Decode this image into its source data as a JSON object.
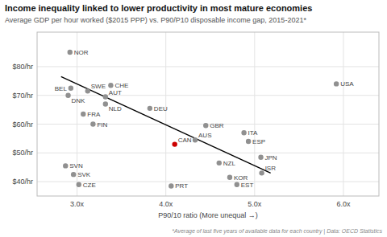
{
  "chart_data": {
    "type": "scatter",
    "title": "Income inequality linked to lower productivity in most mature economies",
    "subtitle": "Average GDP per hour worked ($2015 PPP) vs. P90/P10 disposable income gap, 2015-2021*",
    "footnote": "*Average of last five years of available data for each country | Data: OECD Statistics",
    "xlabel": "P90/10 ratio (More unequal →)",
    "xlim": [
      2.55,
      6.4
    ],
    "ylim": [
      35,
      92
    ],
    "xticks": [
      {
        "value": 3.0,
        "label": "3.0x"
      },
      {
        "value": 4.0,
        "label": "4.0x"
      },
      {
        "value": 5.0,
        "label": "5.0x"
      },
      {
        "value": 6.0,
        "label": "6.0x"
      }
    ],
    "yticks": [
      {
        "value": 40,
        "label": "$40/hr"
      },
      {
        "value": 50,
        "label": "$50/hr"
      },
      {
        "value": 60,
        "label": "$60/hr"
      },
      {
        "value": 70,
        "label": "$70/hr"
      },
      {
        "value": 80,
        "label": "$80/hr"
      }
    ],
    "grid": true,
    "series": [
      {
        "type": "scatter",
        "x": [
          2.92,
          2.93,
          3.12,
          3.38,
          2.9,
          3.32,
          3.32,
          3.07,
          3.18,
          3.82,
          4.45,
          4.33,
          4.1,
          4.88,
          4.93,
          5.07,
          5.08,
          5.92,
          4.6,
          4.72,
          4.8,
          4.06,
          2.87,
          2.96,
          3.02
        ],
        "values": [
          85,
          72.5,
          71.5,
          73.5,
          70.0,
          69.5,
          67.0,
          63.5,
          60.0,
          65.5,
          59.5,
          54.5,
          53.0,
          57.0,
          54.0,
          48.5,
          43.0,
          74.0,
          46.5,
          41.5,
          39.0,
          38.5,
          45.5,
          42.5,
          39.0
        ],
        "labels": [
          "NOR",
          "BEL",
          "SWE",
          "CHE",
          "DNK",
          "AUT",
          "NLD",
          "FRA",
          "FIN",
          "DEU",
          "GBR",
          "AUS",
          "CAN",
          "ITA",
          "ESP",
          "JPN",
          "ISR",
          "USA",
          "NZL",
          "KOR",
          "EST",
          "PRT",
          "SVN",
          "SVK",
          "CZE"
        ],
        "colors": [
          "#909090",
          "#909090",
          "#909090",
          "#909090",
          "#909090",
          "#909090",
          "#909090",
          "#909090",
          "#909090",
          "#909090",
          "#909090",
          "#909090",
          "#cc0000",
          "#909090",
          "#909090",
          "#909090",
          "#909090",
          "#909090",
          "#909090",
          "#909090",
          "#909090",
          "#909090",
          "#909090",
          "#909090",
          "#909090"
        ]
      },
      {
        "type": "line",
        "x": [
          2.82,
          5.18
        ],
        "values": [
          76.5,
          43.0
        ],
        "color": "#000000"
      }
    ]
  }
}
